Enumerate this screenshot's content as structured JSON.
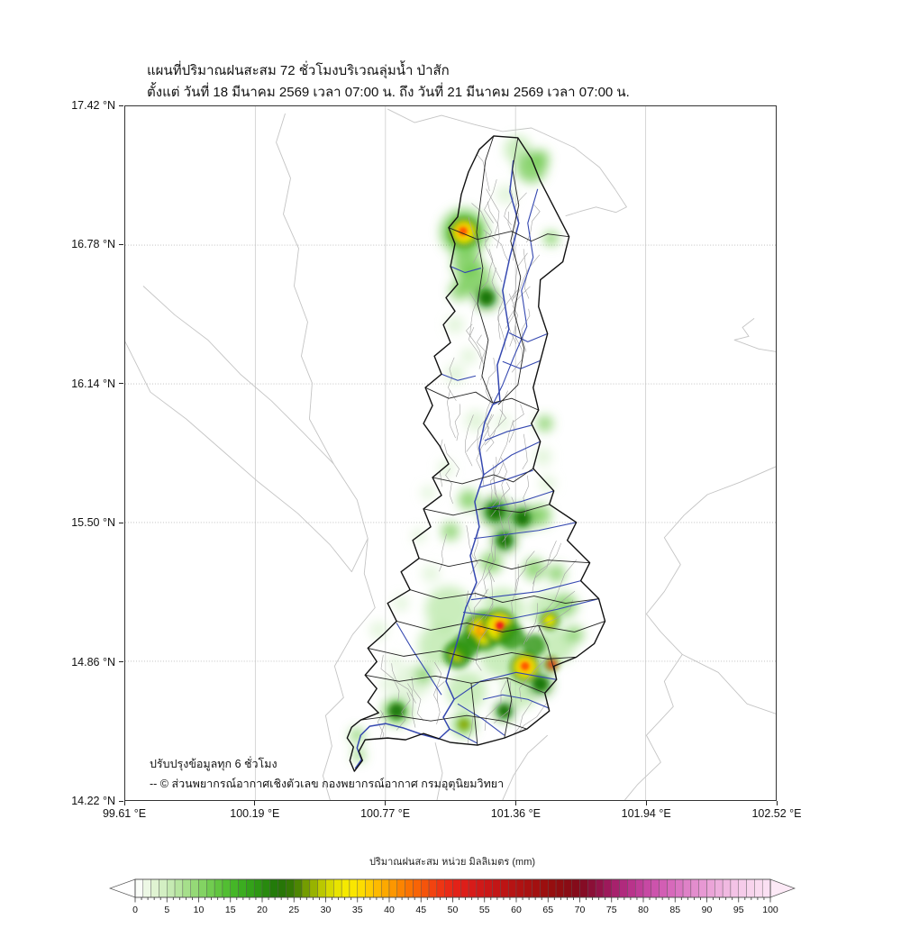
{
  "title": {
    "line1": "แผนที่ปริมาณฝนสะสม 72 ชั่วโมงบริเวณลุ่มน้ำ ป่าสัก",
    "line2": "ตั้งแต่ วันที่ 18 มีนาคม 2569 เวลา 07:00 น. ถึง วันที่ 21 มีนาคม 2569 เวลา 07:00 น."
  },
  "map": {
    "x_tick_labels": [
      "99.61 °E",
      "100.19 °E",
      "100.77 °E",
      "101.36 °E",
      "101.94 °E",
      "102.52 °E"
    ],
    "y_tick_labels": [
      "17.42 °N",
      "16.78 °N",
      "16.14 °N",
      "15.50 °N",
      "14.86 °N",
      "14.22 °N"
    ],
    "annotation_line1": "ปรับปรุงข้อมูลทุก 6 ชั่วโมง",
    "annotation_line2": "-- © ส่วนพยากรณ์อากาศเชิงตัวเลข กองพยากรณ์อากาศ กรมอุตุนิยมวิทยา",
    "basin_name": "ลุ่มน้ำ ป่าสัก",
    "rain_hotspots": [
      {
        "lon": 101.13,
        "lat": 16.84,
        "peak_mm": 45
      },
      {
        "lon": 101.21,
        "lat": 15.0,
        "peak_mm": 45
      },
      {
        "lon": 101.28,
        "lat": 15.02,
        "peak_mm": 50
      },
      {
        "lon": 101.4,
        "lat": 14.83,
        "peak_mm": 48
      },
      {
        "lon": 101.51,
        "lat": 15.05,
        "peak_mm": 35
      },
      {
        "lon": 101.1,
        "lat": 14.89,
        "peak_mm": 32
      },
      {
        "lon": 101.52,
        "lat": 14.85,
        "peak_mm": 50
      }
    ]
  },
  "colorbar": {
    "title": "ปริมาณฝนสะสม หน่วย มิลลิเมตร (mm)",
    "min": 0,
    "max": 100,
    "tick_labels": [
      "0",
      "5",
      "10",
      "15",
      "20",
      "25",
      "30",
      "35",
      "40",
      "45",
      "50",
      "55",
      "60",
      "65",
      "70",
      "75",
      "80",
      "85",
      "90",
      "95",
      "100"
    ],
    "under_color": "#ffffff",
    "over_color": "#fce9f6",
    "stops": [
      [
        0,
        "#ffffff"
      ],
      [
        1.25,
        "#f4faf0"
      ],
      [
        2.5,
        "#e6f5da"
      ],
      [
        5,
        "#cdedbb"
      ],
      [
        7.5,
        "#aee295"
      ],
      [
        10,
        "#8cd66d"
      ],
      [
        12.5,
        "#68c846"
      ],
      [
        15,
        "#4abb2b"
      ],
      [
        17.5,
        "#36a81c"
      ],
      [
        20,
        "#2a9110"
      ],
      [
        22.5,
        "#217408"
      ],
      [
        25,
        "#3a7a02"
      ],
      [
        27.5,
        "#87a800"
      ],
      [
        30,
        "#ccd300"
      ],
      [
        32.5,
        "#f2ea00"
      ],
      [
        35,
        "#fde400"
      ],
      [
        37.5,
        "#fec300"
      ],
      [
        40,
        "#fda000"
      ],
      [
        42.5,
        "#fb7b00"
      ],
      [
        45,
        "#f75c08"
      ],
      [
        47.5,
        "#f03a12"
      ],
      [
        50,
        "#e62417"
      ],
      [
        52.5,
        "#da1c19"
      ],
      [
        55,
        "#cd1818"
      ],
      [
        57.5,
        "#c01515"
      ],
      [
        60,
        "#b31212"
      ],
      [
        62.5,
        "#a61010"
      ],
      [
        65,
        "#990e0e"
      ],
      [
        67.5,
        "#8d0c12"
      ],
      [
        70,
        "#820a1c"
      ],
      [
        72.5,
        "#8e1040"
      ],
      [
        75,
        "#a21c64"
      ],
      [
        77.5,
        "#b52e85"
      ],
      [
        80,
        "#c4429e"
      ],
      [
        82.5,
        "#cf58b0"
      ],
      [
        85,
        "#d96fbf"
      ],
      [
        87.5,
        "#e187ca"
      ],
      [
        90,
        "#e99ed6"
      ],
      [
        92.5,
        "#f0b4df"
      ],
      [
        95,
        "#f5c8e8"
      ],
      [
        97.5,
        "#f9d8ef"
      ],
      [
        100,
        "#fbe3f4"
      ]
    ]
  },
  "colors": {
    "river": "#3548b0",
    "stream": "#a3a3a3",
    "basin_boundary": "#111111",
    "subbasin_boundary": "#222222",
    "admin_boundary": "#c4c4c4",
    "grid": "#b8b8b8"
  }
}
